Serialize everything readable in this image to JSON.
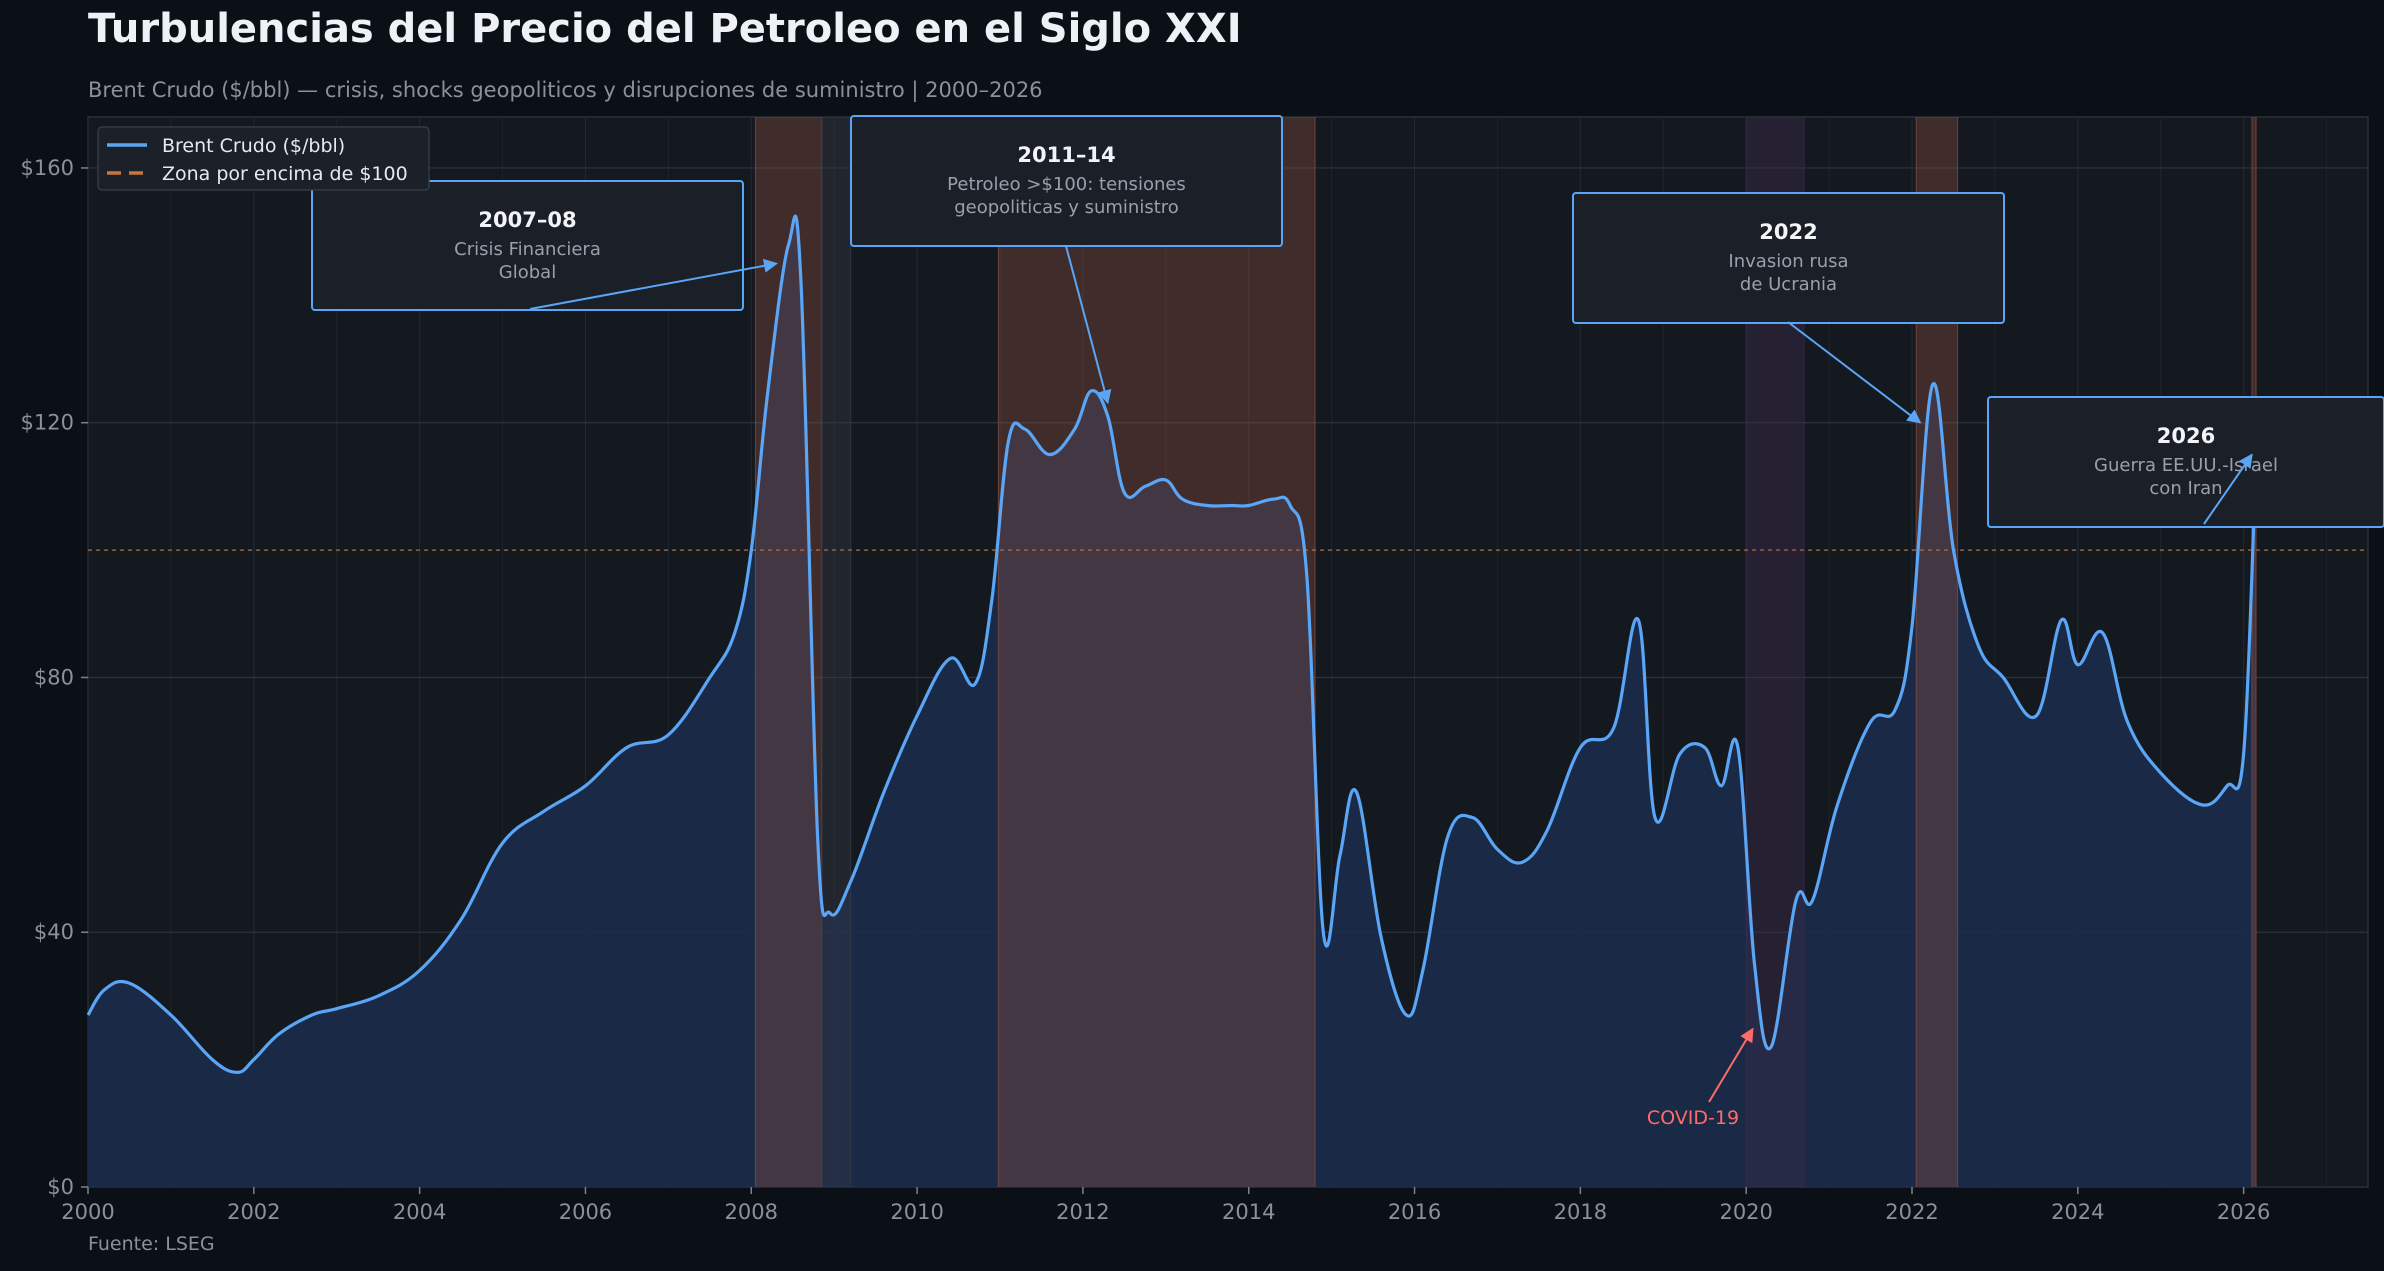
{
  "colors": {
    "background": "#0b0f16",
    "plot_bg": "#141920",
    "line": "#5aa5f5",
    "fill": "#1a2d4d",
    "crisis_shade": "#8a5040",
    "covid_shade": "#3a2c4a",
    "threshold": "#c8743c",
    "covid_text": "#ff6b6b"
  },
  "chart_data": {
    "type": "line",
    "title": "Turbulencias del Precio del Petroleo en el Siglo XXI",
    "subtitle": "Brent Crudo ($/bbl) — crisis, shocks geopoliticos y disrupciones de suministro  |  2000–2026",
    "source": "Fuente: LSEG",
    "xlim": [
      2000,
      2027.5
    ],
    "ylim": [
      0,
      168
    ],
    "x_ticks": [
      2000,
      2002,
      2004,
      2006,
      2008,
      2010,
      2012,
      2014,
      2016,
      2018,
      2020,
      2022,
      2024,
      2026
    ],
    "x_tick_labels": [
      "2000",
      "2002",
      "2004",
      "2006",
      "2008",
      "2010",
      "2012",
      "2014",
      "2016",
      "2018",
      "2020",
      "2022",
      "2024",
      "2026"
    ],
    "y_ticks": [
      0,
      40,
      80,
      120,
      160
    ],
    "y_tick_labels": [
      "$0",
      "$40",
      "$80",
      "$120",
      "$160"
    ],
    "grid": true,
    "legend": {
      "position": "top-left",
      "entries": [
        {
          "label": "Brent Crudo ($/bbl)",
          "style": "solid"
        },
        {
          "label": "Zona por encima de $100",
          "style": "dashed"
        }
      ]
    },
    "threshold": 100,
    "series": [
      {
        "name": "Brent Crudo ($/bbl)",
        "x": [
          2000,
          2000.2,
          2000.5,
          2001,
          2001.5,
          2001.8,
          2002,
          2002.3,
          2002.7,
          2003,
          2003.5,
          2004,
          2004.5,
          2005,
          2005.5,
          2006,
          2006.5,
          2007,
          2007.5,
          2007.8,
          2008,
          2008.2,
          2008.45,
          2008.6,
          2008.8,
          2008.95,
          2009.2,
          2009.6,
          2010,
          2010.4,
          2010.7,
          2010.9,
          2011.1,
          2011.3,
          2011.6,
          2011.9,
          2012.1,
          2012.3,
          2012.5,
          2012.75,
          2013,
          2013.2,
          2013.5,
          2013.8,
          2014,
          2014.3,
          2014.5,
          2014.7,
          2014.9,
          2015.1,
          2015.3,
          2015.6,
          2015.9,
          2016.1,
          2016.4,
          2016.7,
          2017,
          2017.3,
          2017.6,
          2018,
          2018.4,
          2018.7,
          2018.9,
          2019.2,
          2019.5,
          2019.7,
          2019.9,
          2020.1,
          2020.3,
          2020.6,
          2020.8,
          2021.1,
          2021.5,
          2021.8,
          2022,
          2022.25,
          2022.5,
          2022.8,
          2023.1,
          2023.5,
          2023.8,
          2024,
          2024.3,
          2024.6,
          2025,
          2025.5,
          2025.8,
          2026,
          2026.15
        ],
        "values": [
          27,
          31,
          32,
          27,
          20,
          18,
          20,
          24,
          27,
          28,
          30,
          34,
          42,
          54,
          59,
          63,
          69,
          71,
          80,
          87,
          100,
          125,
          148,
          142,
          55,
          43,
          48,
          62,
          74,
          83,
          79,
          92,
          117,
          119,
          115,
          119,
          125,
          121,
          109,
          110,
          111,
          108,
          107,
          107,
          107,
          108,
          107,
          96,
          40,
          52,
          62,
          39,
          27,
          34,
          55,
          58,
          53,
          51,
          56,
          69,
          72,
          89,
          58,
          68,
          69,
          63,
          69,
          35,
          22,
          45,
          45,
          60,
          73,
          75,
          88,
          126,
          100,
          85,
          80,
          74,
          89,
          82,
          87,
          73,
          65,
          60,
          63,
          68,
          115
        ]
      }
    ],
    "shaded_regions": [
      {
        "from": 2008.05,
        "to": 2008.85,
        "kind": "crisis"
      },
      {
        "from": 2008.85,
        "to": 2009.2,
        "kind": "period"
      },
      {
        "from": 2010.98,
        "to": 2014.8,
        "kind": "crisis"
      },
      {
        "from": 2020.0,
        "to": 2020.7,
        "kind": "covid"
      },
      {
        "from": 2022.05,
        "to": 2022.55,
        "kind": "crisis"
      },
      {
        "from": 2026.1,
        "to": 2026.15,
        "kind": "crisis"
      }
    ],
    "annotations": [
      {
        "title": "2007–08",
        "text": [
          "Crisis Financiera",
          "Global"
        ],
        "target": [
          2008.45,
          145
        ]
      },
      {
        "title": "2011–14",
        "text": [
          "Petroleo >$100: tensiones",
          "geopoliticas y suministro"
        ],
        "target": [
          2012.3,
          125
        ]
      },
      {
        "title": "2022",
        "text": [
          "Invasion rusa",
          "de Ucrania"
        ],
        "target": [
          2022.1,
          120
        ]
      },
      {
        "title": "2026",
        "text": [
          "Guerra EE.UU.-Israel",
          "con Iran"
        ],
        "target": [
          2026.1,
          115
        ]
      },
      {
        "text": [
          "COVID-19"
        ],
        "target": [
          2020.2,
          22
        ],
        "color": "covid"
      }
    ]
  }
}
